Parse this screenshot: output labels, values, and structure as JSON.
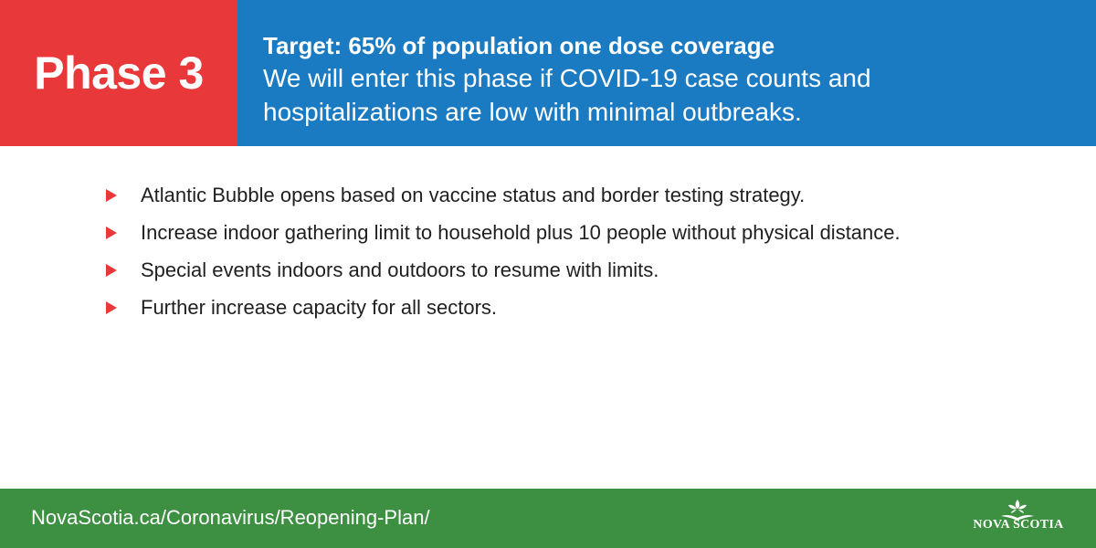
{
  "header": {
    "phase_label": "Phase 3",
    "target_title": "Target: 65% of population one dose coverage",
    "target_description": "We will enter this phase if COVID-19 case counts and hospitalizations are low with minimal outbreaks."
  },
  "bullets": [
    {
      "text": "Atlantic Bubble opens based on vaccine status and border testing strategy."
    },
    {
      "text": "Increase indoor gathering limit to household plus 10 people without physical distance."
    },
    {
      "text": "Special events indoors and outdoors to resume with limits."
    },
    {
      "text": "Further increase capacity for all sectors."
    }
  ],
  "footer": {
    "url": "NovaScotia.ca/Coronavirus/Reopening-Plan/",
    "logo_text": "NOVA SCOTIA",
    "logo_icon": "mayflower-icon"
  },
  "colors": {
    "phase_red": "#e8383a",
    "target_blue": "#1a7ac2",
    "footer_green": "#3d8f41",
    "bullet_red": "#e8383a"
  }
}
